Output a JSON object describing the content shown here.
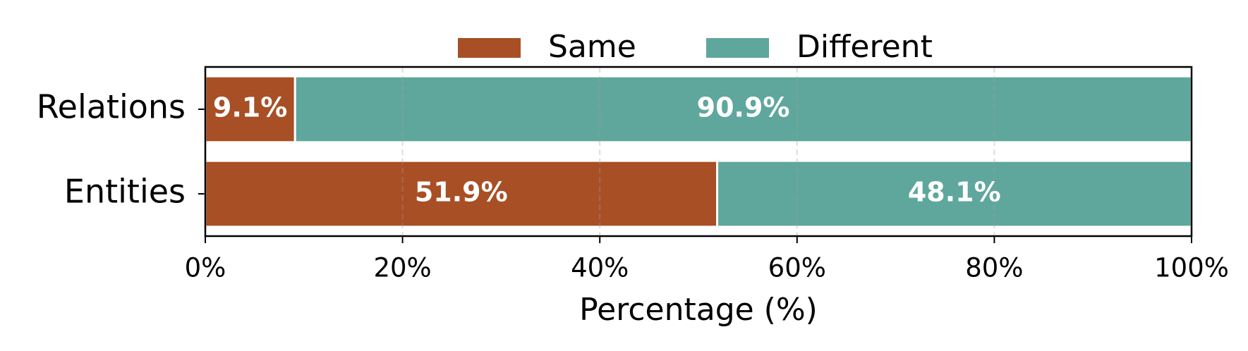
{
  "chart_data": {
    "type": "stacked-barh",
    "categories": [
      "Relations",
      "Entities"
    ],
    "series": [
      {
        "name": "Same",
        "color": "#a84f25",
        "values": [
          9.1,
          51.9
        ],
        "value_labels": [
          "9.1%",
          "51.9%"
        ]
      },
      {
        "name": "Different",
        "color": "#5fa79c",
        "values": [
          90.9,
          48.1
        ],
        "value_labels": [
          "90.9%",
          "48.1%"
        ]
      }
    ],
    "xlabel": "Percentage (%)",
    "xlim": [
      0,
      100
    ],
    "xticks": [
      {
        "value": 0,
        "label": "0%"
      },
      {
        "value": 20,
        "label": "20%"
      },
      {
        "value": 40,
        "label": "40%"
      },
      {
        "value": 60,
        "label": "60%"
      },
      {
        "value": 80,
        "label": "80%"
      },
      {
        "value": 100,
        "label": "100%"
      }
    ],
    "grid": true,
    "legend": "top"
  }
}
